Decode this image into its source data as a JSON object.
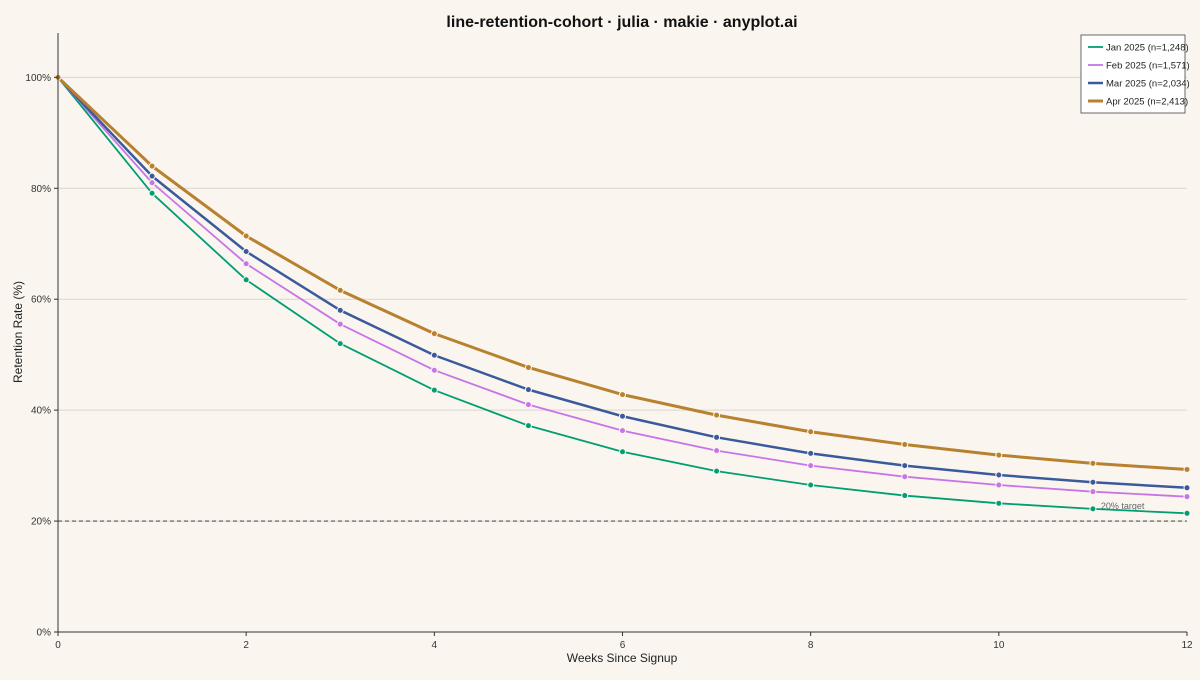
{
  "chart_data": {
    "type": "line",
    "title": "line-retention-cohort · julia · makie · anyplot.ai",
    "xlabel": "Weeks Since Signup",
    "ylabel": "Retention Rate (%)",
    "xlim": [
      0,
      12
    ],
    "ylim": [
      0,
      108
    ],
    "xticks": [
      0,
      2,
      4,
      6,
      8,
      10,
      12
    ],
    "yticks": [
      0,
      20,
      40,
      60,
      80,
      100
    ],
    "ytick_labels": [
      "0%",
      "20%",
      "40%",
      "60%",
      "80%",
      "100%"
    ],
    "grid": "horizontal",
    "legend_position": "top-right",
    "x": [
      0,
      1,
      2,
      3,
      4,
      5,
      6,
      7,
      8,
      9,
      10,
      11,
      12
    ],
    "series": [
      {
        "name": "Jan 2025 (n=1,248)",
        "color": "#009E73",
        "values": [
          100,
          79.1,
          63.5,
          52.0,
          43.6,
          37.2,
          32.5,
          29.0,
          26.5,
          24.6,
          23.2,
          22.2,
          21.4
        ]
      },
      {
        "name": "Feb 2025 (n=1,571)",
        "color": "#C774E8",
        "values": [
          100,
          81.0,
          66.4,
          55.5,
          47.2,
          41.0,
          36.3,
          32.7,
          30.0,
          28.0,
          26.5,
          25.3,
          24.4
        ]
      },
      {
        "name": "Mar 2025 (n=2,034)",
        "color": "#3A5A9C",
        "values": [
          100,
          82.2,
          68.6,
          58.0,
          49.9,
          43.7,
          38.9,
          35.1,
          32.2,
          30.0,
          28.3,
          27.0,
          26.0
        ]
      },
      {
        "name": "Apr 2025 (n=2,413)",
        "color": "#B8812F",
        "values": [
          100,
          84.0,
          71.4,
          61.6,
          53.8,
          47.7,
          42.8,
          39.1,
          36.1,
          33.8,
          31.9,
          30.4,
          29.3
        ]
      }
    ],
    "reference_line": {
      "y": 20,
      "label": "20% target",
      "color": "#555555"
    }
  }
}
